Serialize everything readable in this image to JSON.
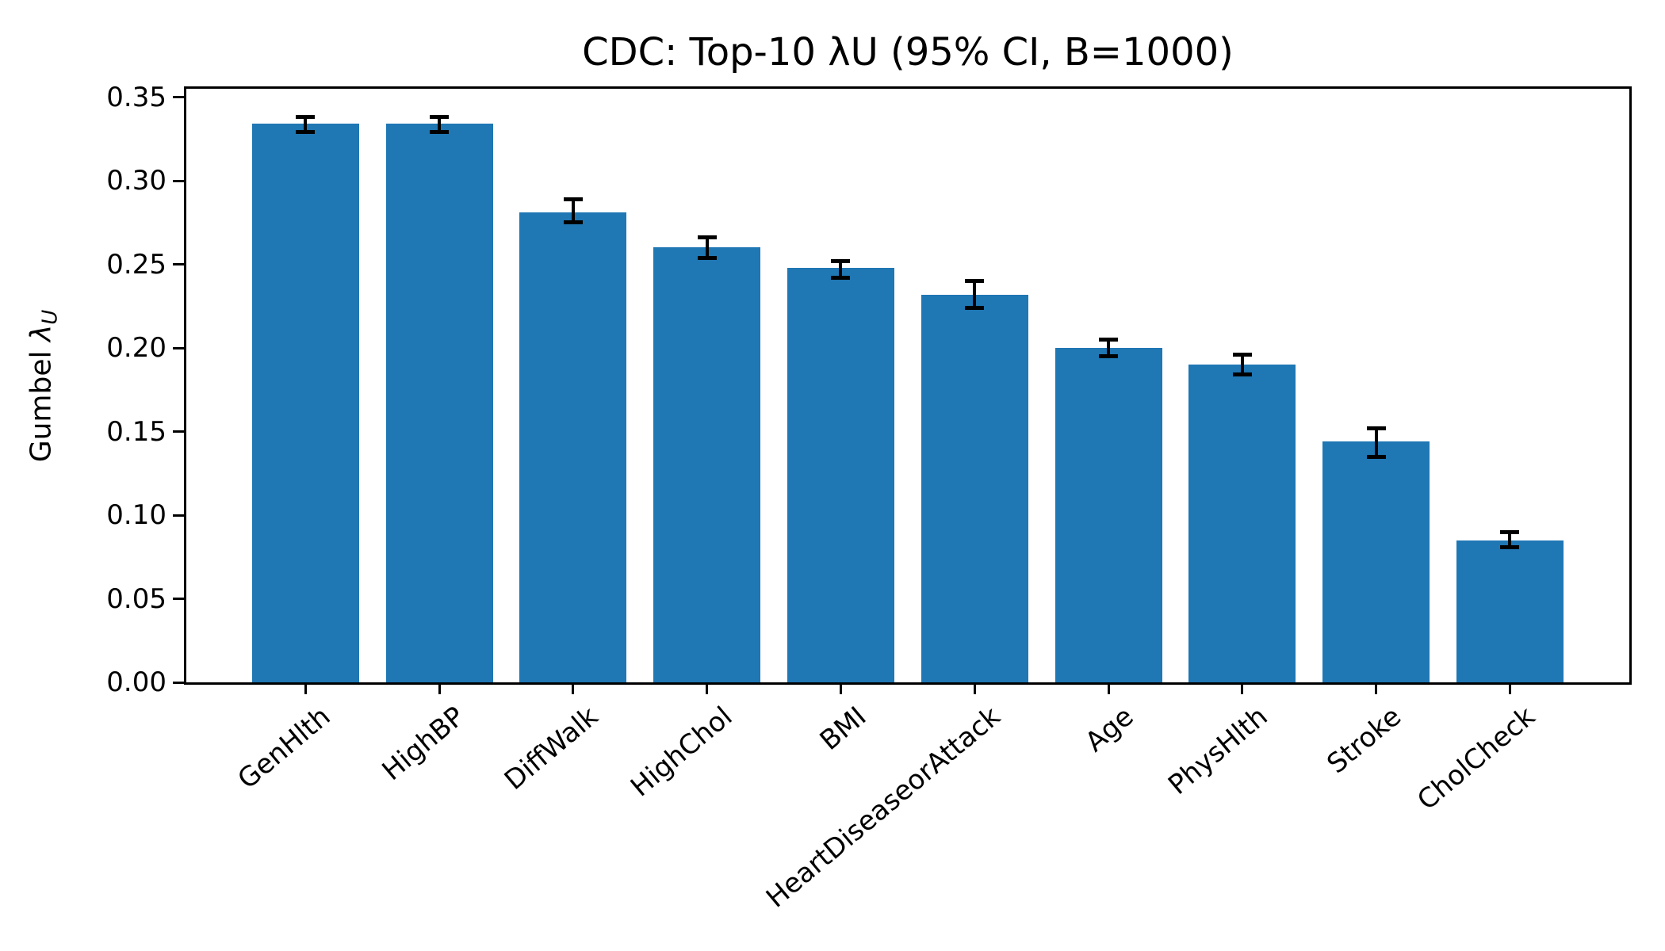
{
  "chart_data": {
    "type": "bar",
    "title": "CDC: Top-10 λU (95% CI, B=1000)",
    "ylabel_prefix": "Gumbel ",
    "ylabel_symbol": "λ",
    "ylabel_sub": "U",
    "xlabel": "",
    "categories": [
      "GenHlth",
      "HighBP",
      "DiffWalk",
      "HighChol",
      "BMI",
      "HeartDiseaseorAttack",
      "Age",
      "PhysHlth",
      "Stroke",
      "CholCheck"
    ],
    "values": [
      0.334,
      0.334,
      0.281,
      0.26,
      0.248,
      0.232,
      0.2,
      0.19,
      0.144,
      0.085
    ],
    "ci_low": [
      0.329,
      0.329,
      0.275,
      0.254,
      0.242,
      0.224,
      0.195,
      0.184,
      0.135,
      0.081
    ],
    "ci_high": [
      0.338,
      0.338,
      0.289,
      0.266,
      0.252,
      0.24,
      0.205,
      0.196,
      0.152,
      0.09
    ],
    "y_ticks": [
      "0.00",
      "0.05",
      "0.10",
      "0.15",
      "0.20",
      "0.25",
      "0.30",
      "0.35"
    ],
    "ylim": [
      0,
      0.355
    ],
    "grid": "off",
    "legend": "none",
    "bar_color": "#1f77b4",
    "error_color": "#000000",
    "errorbar_style": "95% CI with caps"
  }
}
